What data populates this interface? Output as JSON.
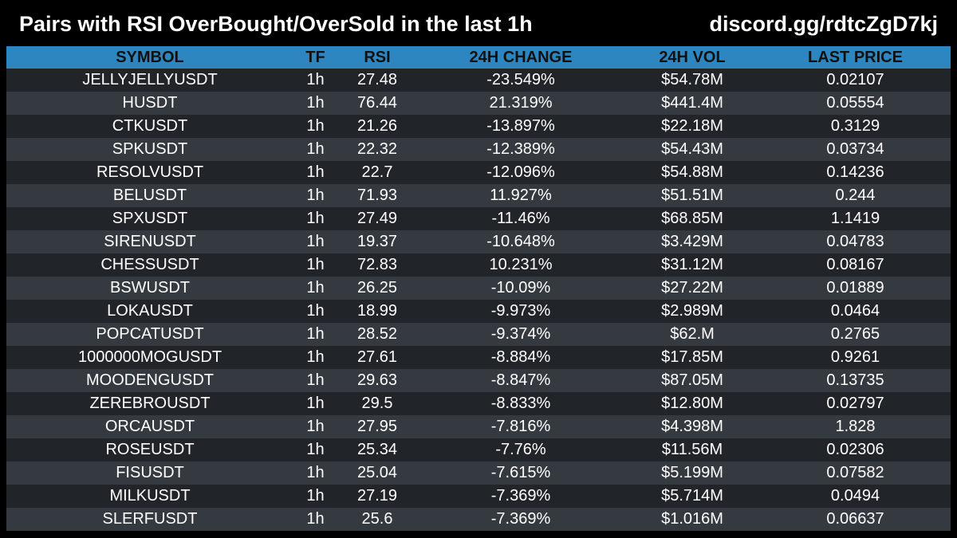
{
  "header": {
    "title": "Pairs with RSI OverBought/OverSold in the last 1h",
    "discord": "discord.gg/rdtcZgD7kj"
  },
  "colors": {
    "background": "#000000",
    "header_row": "#2e86c1",
    "row_dark": "#212529",
    "row_light": "#343a40",
    "text": "#ffffff",
    "header_text": "#111111"
  },
  "table": {
    "columns": [
      "SYMBOL",
      "TF",
      "RSI",
      "24H CHANGE",
      "24H VOL",
      "LAST PRICE"
    ],
    "rows": [
      [
        "JELLYJELLYUSDT",
        "1h",
        "27.48",
        "-23.549%",
        "$54.78M",
        "0.02107"
      ],
      [
        "HUSDT",
        "1h",
        "76.44",
        "21.319%",
        "$441.4M",
        "0.05554"
      ],
      [
        "CTKUSDT",
        "1h",
        "21.26",
        "-13.897%",
        "$22.18M",
        "0.3129"
      ],
      [
        "SPKUSDT",
        "1h",
        "22.32",
        "-12.389%",
        "$54.43M",
        "0.03734"
      ],
      [
        "RESOLVUSDT",
        "1h",
        "22.7",
        "-12.096%",
        "$54.88M",
        "0.14236"
      ],
      [
        "BELUSDT",
        "1h",
        "71.93",
        "11.927%",
        "$51.51M",
        "0.244"
      ],
      [
        "SPXUSDT",
        "1h",
        "27.49",
        "-11.46%",
        "$68.85M",
        "1.1419"
      ],
      [
        "SIRENUSDT",
        "1h",
        "19.37",
        "-10.648%",
        "$3.429M",
        "0.04783"
      ],
      [
        "CHESSUSDT",
        "1h",
        "72.83",
        "10.231%",
        "$31.12M",
        "0.08167"
      ],
      [
        "BSWUSDT",
        "1h",
        "26.25",
        "-10.09%",
        "$27.22M",
        "0.01889"
      ],
      [
        "LOKAUSDT",
        "1h",
        "18.99",
        "-9.973%",
        "$2.989M",
        "0.0464"
      ],
      [
        "POPCATUSDT",
        "1h",
        "28.52",
        "-9.374%",
        "$62.M",
        "0.2765"
      ],
      [
        "1000000MOGUSDT",
        "1h",
        "27.61",
        "-8.884%",
        "$17.85M",
        "0.9261"
      ],
      [
        "MOODENGUSDT",
        "1h",
        "29.63",
        "-8.847%",
        "$87.05M",
        "0.13735"
      ],
      [
        "ZEREBROUSDT",
        "1h",
        "29.5",
        "-8.833%",
        "$12.80M",
        "0.02797"
      ],
      [
        "ORCAUSDT",
        "1h",
        "27.95",
        "-7.816%",
        "$4.398M",
        "1.828"
      ],
      [
        "ROSEUSDT",
        "1h",
        "25.34",
        "-7.76%",
        "$11.56M",
        "0.02306"
      ],
      [
        "FISUSDT",
        "1h",
        "25.04",
        "-7.615%",
        "$5.199M",
        "0.07582"
      ],
      [
        "MILKUSDT",
        "1h",
        "27.19",
        "-7.369%",
        "$5.714M",
        "0.0494"
      ],
      [
        "SLERFUSDT",
        "1h",
        "25.6",
        "-7.369%",
        "$1.016M",
        "0.06637"
      ]
    ]
  }
}
